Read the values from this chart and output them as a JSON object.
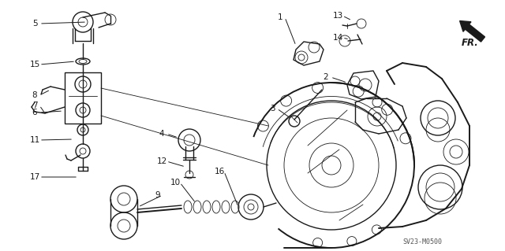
{
  "background_color": "#ffffff",
  "line_color": "#1a1a1a",
  "part_number_code": "SV23-M0500",
  "fr_label": "FR.",
  "label_fontsize": 7.5,
  "lw_main": 1.0,
  "lw_thin": 0.6,
  "lw_thick": 1.4
}
